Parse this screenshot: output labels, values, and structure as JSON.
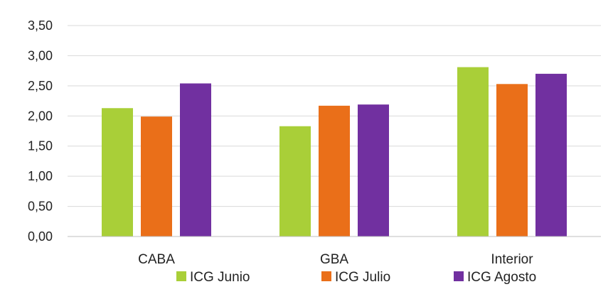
{
  "chart_data": {
    "type": "bar",
    "title": "",
    "xlabel": "",
    "ylabel": "",
    "categories": [
      "CABA",
      "GBA",
      "Interior"
    ],
    "series": [
      {
        "name": "ICG Junio",
        "values": [
          2.13,
          1.83,
          2.81
        ],
        "color": "#a9cf38"
      },
      {
        "name": "ICG Julio",
        "values": [
          1.99,
          2.17,
          2.53
        ],
        "color": "#ea6f19"
      },
      {
        "name": "ICG Agosto",
        "values": [
          2.54,
          2.19,
          2.7
        ],
        "color": "#7130a0"
      }
    ],
    "ylim": [
      0,
      3.5
    ],
    "yticks": [
      "0,00",
      "0,50",
      "1,00",
      "1,50",
      "2,00",
      "2,50",
      "3,00",
      "3,50"
    ],
    "grid": true,
    "legend_position": "bottom"
  }
}
